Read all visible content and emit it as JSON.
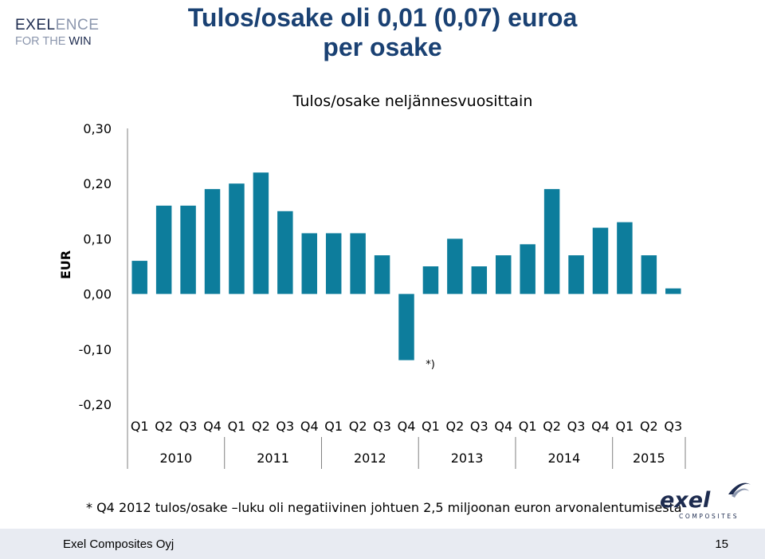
{
  "brand": {
    "line1_dark": "EXEL",
    "line1_light": "ENCE",
    "line2_light": "FOR THE ",
    "line2_dark": "WIN"
  },
  "slide_title_line1": "Tulos/osake oli 0,01 (0,07) euroa",
  "slide_title_line2": "per osake",
  "footnote": "* Q4 2012 tulos/osake –luku oli negatiivinen johtuen 2,5 miljoonan euron arvonalentumisesta",
  "logo": {
    "wordmark": "exel",
    "subtext": "COMPOSITES"
  },
  "footer": {
    "company": "Exel Composites Oyj",
    "page": "15"
  },
  "colors": {
    "bar": "#0d7d9c",
    "title": "#1a4173",
    "footer_bg": "#e8ebf2"
  },
  "chart_data": {
    "type": "bar",
    "title": "Tulos/osake neljännesvuosittain",
    "ylabel": "EUR",
    "ylim": [
      -0.2,
      0.3
    ],
    "yticks": [
      0.3,
      0.2,
      0.1,
      0.0,
      -0.1,
      -0.2
    ],
    "ytick_labels": [
      "0,30",
      "0,20",
      "0,10",
      "0,00",
      "-0,10",
      "-0,20"
    ],
    "categories": [
      "Q1",
      "Q2",
      "Q3",
      "Q4",
      "Q1",
      "Q2",
      "Q3",
      "Q4",
      "Q1",
      "Q2",
      "Q3",
      "Q4",
      "Q1",
      "Q2",
      "Q3",
      "Q4",
      "Q1",
      "Q2",
      "Q3",
      "Q4",
      "Q1",
      "Q2",
      "Q3"
    ],
    "years": [
      {
        "label": "2010",
        "quarters": 4
      },
      {
        "label": "2011",
        "quarters": 4
      },
      {
        "label": "2012",
        "quarters": 4
      },
      {
        "label": "2013",
        "quarters": 4
      },
      {
        "label": "2014",
        "quarters": 4
      },
      {
        "label": "2015",
        "quarters": 3
      }
    ],
    "values": [
      0.06,
      0.16,
      0.16,
      0.19,
      0.2,
      0.22,
      0.15,
      0.11,
      0.11,
      0.11,
      0.07,
      -0.12,
      0.05,
      0.1,
      0.05,
      0.07,
      0.09,
      0.19,
      0.07,
      0.12,
      0.13,
      0.07,
      0.01
    ],
    "annotations": [
      {
        "text": "*)",
        "index": 11
      }
    ],
    "grid": false
  }
}
